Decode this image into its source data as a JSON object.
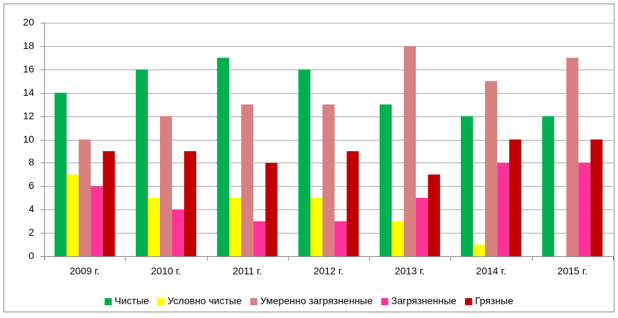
{
  "chart_data": {
    "type": "bar",
    "categories": [
      "2009 г.",
      "2010 г.",
      "2011 г.",
      "2012 г.",
      "2013 г.",
      "2014 г.",
      "2015 г."
    ],
    "series": [
      {
        "name": "Чистые",
        "color": "#00b050",
        "values": [
          14,
          16,
          17,
          16,
          13,
          12,
          12
        ]
      },
      {
        "name": "Условно чистые",
        "color": "#ffff00",
        "values": [
          7,
          5,
          5,
          5,
          3,
          1,
          0
        ]
      },
      {
        "name": "Умеренно загрязненные",
        "color": "#d98080",
        "values": [
          10,
          12,
          13,
          13,
          18,
          15,
          17
        ]
      },
      {
        "name": "Загрязненные",
        "color": "#ff3399",
        "values": [
          6,
          4,
          3,
          3,
          5,
          8,
          8
        ]
      },
      {
        "name": "Грязные",
        "color": "#c00000",
        "values": [
          9,
          9,
          8,
          9,
          7,
          10,
          10
        ]
      }
    ],
    "ylim": [
      0,
      20
    ],
    "yticks": [
      0,
      2,
      4,
      6,
      8,
      10,
      12,
      14,
      16,
      18,
      20
    ],
    "grid": true,
    "legend": "bottom"
  }
}
